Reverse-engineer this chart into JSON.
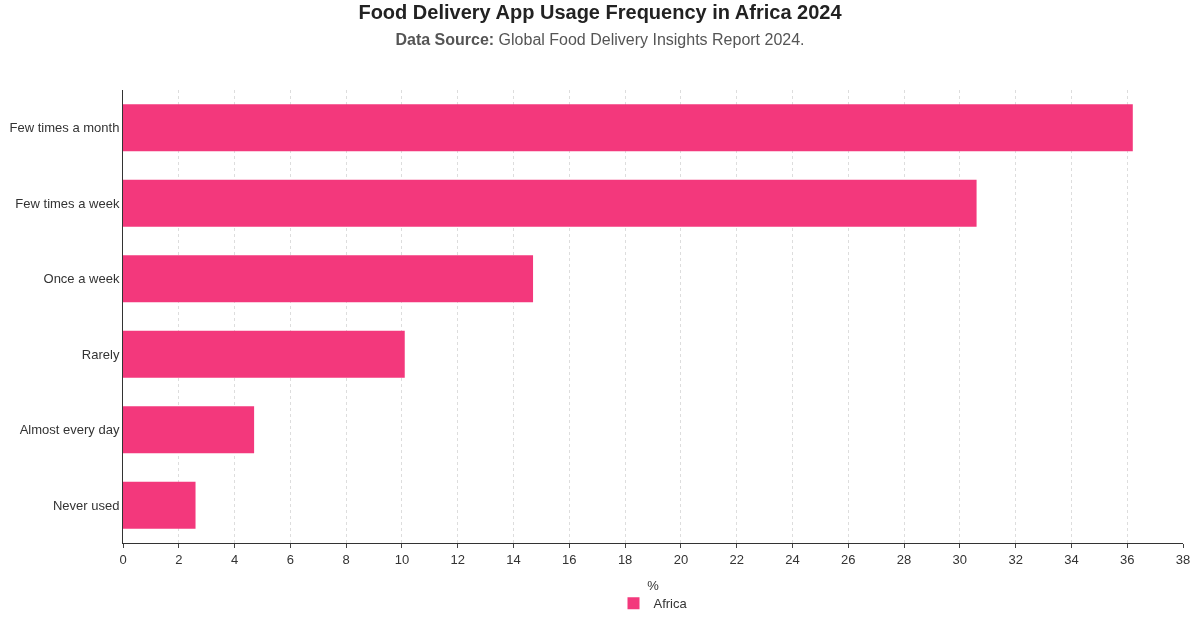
{
  "chart_data": {
    "type": "bar",
    "orientation": "horizontal",
    "title": "Food Delivery App Usage Frequency in Africa 2024",
    "subtitle": "Data Source: Global Food Delivery Insights Report 2024.",
    "xlabel": "%",
    "categories": [
      "Few times a month",
      "Few times a week",
      "Once a week",
      "Rarely",
      "Almost every day",
      "Never used"
    ],
    "series": [
      {
        "name": "Africa",
        "color": "#f3387c",
        "values": [
          36.2,
          30.6,
          14.7,
          10.1,
          4.7,
          2.6
        ]
      }
    ],
    "xlim": [
      0,
      38
    ],
    "xticks": [
      0,
      2,
      4,
      6,
      8,
      10,
      12,
      14,
      16,
      18,
      20,
      22,
      24,
      26,
      28,
      30,
      32,
      34,
      36,
      38
    ],
    "grid": "x",
    "legend": "bottom"
  }
}
